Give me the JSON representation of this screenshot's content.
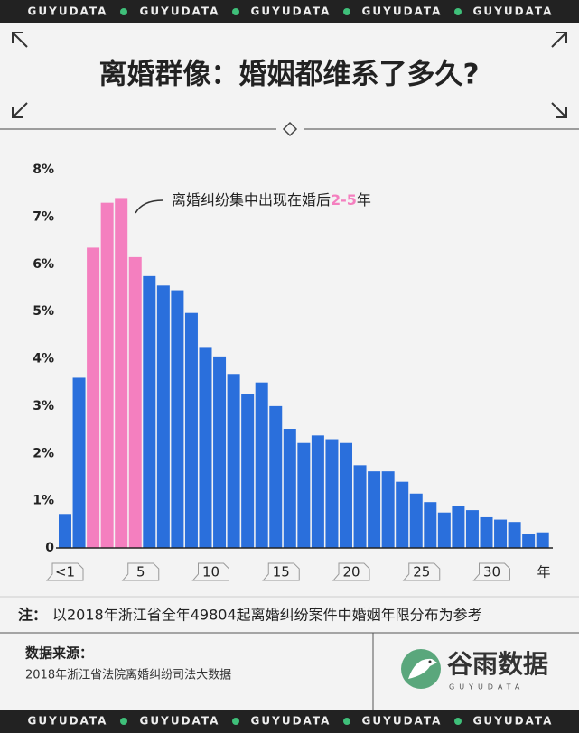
{
  "banner": "GUYUDATA",
  "chart_data": {
    "type": "bar",
    "title": "离婚群像：婚姻都维系了多久?",
    "annotation": {
      "text": "离婚纠纷集中出现在婚后",
      "highlight": "2-5",
      "suffix": "年"
    },
    "x_unit": "年",
    "categories": [
      "<1",
      null,
      null,
      null,
      null,
      "5",
      null,
      null,
      null,
      null,
      "10",
      null,
      null,
      null,
      null,
      "15",
      null,
      null,
      null,
      null,
      "20",
      null,
      null,
      null,
      null,
      "25",
      null,
      null,
      null,
      null,
      "30",
      null,
      null,
      null,
      null
    ],
    "values": [
      0.72,
      3.6,
      6.35,
      7.3,
      7.4,
      6.15,
      5.75,
      5.55,
      5.45,
      4.97,
      4.25,
      4.05,
      3.68,
      3.25,
      3.5,
      3.0,
      2.52,
      2.22,
      2.38,
      2.3,
      2.22,
      1.75,
      1.62,
      1.62,
      1.4,
      1.15,
      0.97,
      0.75,
      0.88,
      0.8,
      0.65,
      0.6,
      0.55,
      0.3,
      0.33
    ],
    "colors": [
      "#2a6fdc",
      "#2a6fdc",
      "#f47fbf",
      "#f47fbf",
      "#f47fbf",
      "#f47fbf",
      "#2a6fdc",
      "#2a6fdc",
      "#2a6fdc",
      "#2a6fdc",
      "#2a6fdc",
      "#2a6fdc",
      "#2a6fdc",
      "#2a6fdc",
      "#2a6fdc",
      "#2a6fdc",
      "#2a6fdc",
      "#2a6fdc",
      "#2a6fdc",
      "#2a6fdc",
      "#2a6fdc",
      "#2a6fdc",
      "#2a6fdc",
      "#2a6fdc",
      "#2a6fdc",
      "#2a6fdc",
      "#2a6fdc",
      "#2a6fdc",
      "#2a6fdc",
      "#2a6fdc",
      "#2a6fdc",
      "#2a6fdc",
      "#2a6fdc",
      "#2a6fdc",
      "#2a6fdc"
    ],
    "ylim": [
      0,
      8
    ],
    "yticks": [
      0,
      {
        "value": 1,
        "label": "1%"
      },
      {
        "value": 2,
        "label": "2%"
      },
      {
        "value": 3,
        "label": "3%"
      },
      {
        "value": 4,
        "label": "4%"
      },
      {
        "value": 5,
        "label": "5%"
      },
      {
        "value": 6,
        "label": "6%"
      },
      {
        "value": 7,
        "label": "7%"
      },
      {
        "value": 8,
        "label": "8%"
      }
    ],
    "grid": false
  },
  "note": {
    "label": "注：",
    "text": "以2018年浙江省全年49804起离婚纠纷案件中婚姻年限分布为参考"
  },
  "source": {
    "label": "数据来源：",
    "text": "2018年浙江省法院离婚纠纷司法大数据"
  },
  "logo": {
    "name": "谷雨数据",
    "sub": "GUYUDATA"
  }
}
